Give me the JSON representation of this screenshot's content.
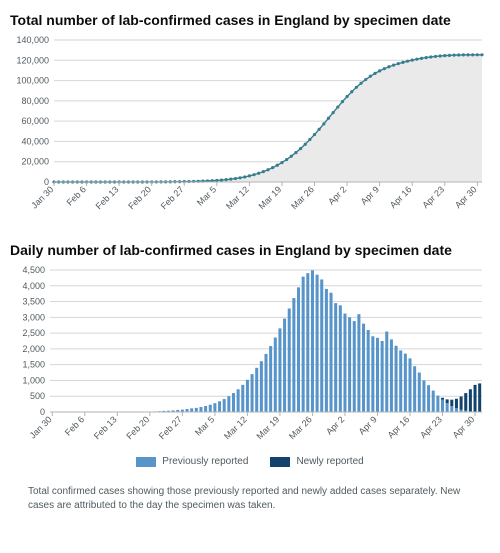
{
  "chart_top": {
    "type": "area",
    "title": "Total number of lab-confirmed cases in England by specimen date",
    "line_color": "#367e8f",
    "dot_color": "#367e8f",
    "area_fill": "#eaeaea",
    "grid_color": "#d6d6d6",
    "axis_color": "#b1b4b6",
    "background_color": "#ffffff",
    "title_fontsize": 14,
    "tick_fontsize": 9,
    "tick_color": "#505a5f",
    "ylim": [
      0,
      140000
    ],
    "yticks": [
      0,
      20000,
      40000,
      60000,
      80000,
      100000,
      120000,
      140000
    ],
    "ytick_labels": [
      "0",
      "20,000",
      "40,000",
      "60,000",
      "80,000",
      "100,000",
      "120,000",
      "140,000"
    ],
    "dot_radius": 1.6,
    "line_width": 1.4,
    "x_labels": [
      "Jan 30",
      "Feb 6",
      "Feb 13",
      "Feb 20",
      "Feb 27",
      "Mar 5",
      "Mar 12",
      "Mar 19",
      "Mar 26",
      "Apr 2",
      "Apr 9",
      "Apr 16",
      "Apr 23",
      "Apr 30"
    ],
    "x_label_step": 7,
    "values": [
      2,
      2,
      2,
      2,
      2,
      2,
      2,
      2,
      2,
      2,
      2,
      2,
      4,
      5,
      7,
      9,
      12,
      15,
      20,
      28,
      38,
      52,
      70,
      95,
      130,
      170,
      220,
      285,
      360,
      455,
      570,
      700,
      860,
      1050,
      1280,
      1560,
      1900,
      2310,
      2810,
      3410,
      4130,
      4990,
      6010,
      7210,
      8610,
      10220,
      12060,
      14150,
      16510,
      19160,
      22120,
      25400,
      29010,
      32960,
      37250,
      41870,
      46790,
      51970,
      57350,
      62860,
      68410,
      73900,
      79220,
      84260,
      88990,
      93370,
      97380,
      101000,
      104230,
      107080,
      109570,
      111730,
      113610,
      115250,
      116690,
      117970,
      119120,
      120160,
      121090,
      121920,
      122650,
      123280,
      123810,
      124250,
      124600,
      124870,
      125070,
      125210,
      125300,
      125350,
      125380,
      125400,
      125410
    ]
  },
  "chart_bottom": {
    "type": "bar",
    "title": "Daily number of lab-confirmed cases in England by specimen date",
    "color_prev": "#5694ca",
    "color_new": "#12436d",
    "grid_color": "#d6d6d6",
    "axis_color": "#b1b4b6",
    "background_color": "#ffffff",
    "title_fontsize": 14,
    "tick_fontsize": 9,
    "tick_color": "#505a5f",
    "ylim": [
      0,
      4500
    ],
    "yticks": [
      0,
      500,
      1000,
      1500,
      2000,
      2500,
      3000,
      3500,
      4000,
      4500
    ],
    "ytick_labels": [
      "0",
      "500",
      "1,000",
      "1,500",
      "2,000",
      "2,500",
      "3,000",
      "3,500",
      "4,000",
      "4,500"
    ],
    "bar_gap_ratio": 0.35,
    "x_labels": [
      "Jan 30",
      "Feb 6",
      "Feb 13",
      "Feb 20",
      "Feb 27",
      "Mar 5",
      "Mar 12",
      "Mar 19",
      "Mar 26",
      "Apr 2",
      "Apr 9",
      "Apr 16",
      "Apr 23",
      "Apr 30"
    ],
    "x_label_step": 7,
    "legend": {
      "prev": "Previously reported",
      "new_": "Newly reported"
    },
    "values_prev": [
      2,
      0,
      0,
      0,
      0,
      0,
      0,
      0,
      0,
      0,
      0,
      0,
      2,
      1,
      2,
      2,
      3,
      3,
      5,
      8,
      10,
      14,
      18,
      25,
      35,
      40,
      50,
      65,
      75,
      95,
      115,
      130,
      160,
      190,
      230,
      280,
      340,
      410,
      500,
      600,
      720,
      860,
      1020,
      1200,
      1400,
      1610,
      1840,
      2090,
      2360,
      2650,
      2960,
      3280,
      3610,
      3950,
      4290,
      4400,
      4490,
      4350,
      4200,
      3900,
      3780,
      3450,
      3380,
      3120,
      3000,
      2880,
      3100,
      2800,
      2600,
      2400,
      2350,
      2250,
      2550,
      2300,
      2100,
      1950,
      1850,
      1700,
      1450,
      1250,
      1000,
      850,
      680,
      520,
      390,
      280,
      190,
      120,
      70,
      40,
      20,
      10,
      5
    ],
    "values_new": [
      0,
      0,
      0,
      0,
      0,
      0,
      0,
      0,
      0,
      0,
      0,
      0,
      0,
      0,
      0,
      0,
      0,
      0,
      0,
      0,
      0,
      0,
      0,
      0,
      0,
      0,
      0,
      0,
      0,
      0,
      0,
      0,
      0,
      0,
      0,
      0,
      0,
      0,
      0,
      0,
      0,
      0,
      0,
      0,
      0,
      0,
      0,
      0,
      0,
      0,
      0,
      0,
      0,
      0,
      0,
      0,
      0,
      0,
      0,
      0,
      0,
      0,
      0,
      0,
      0,
      0,
      0,
      0,
      0,
      0,
      0,
      0,
      0,
      0,
      0,
      0,
      0,
      0,
      0,
      0,
      0,
      0,
      0,
      0,
      60,
      120,
      200,
      300,
      420,
      560,
      700,
      850,
      900
    ]
  },
  "footnote": "Total confirmed cases showing those previously reported and newly added cases separately. New cases are attributed to the day the specimen was taken."
}
